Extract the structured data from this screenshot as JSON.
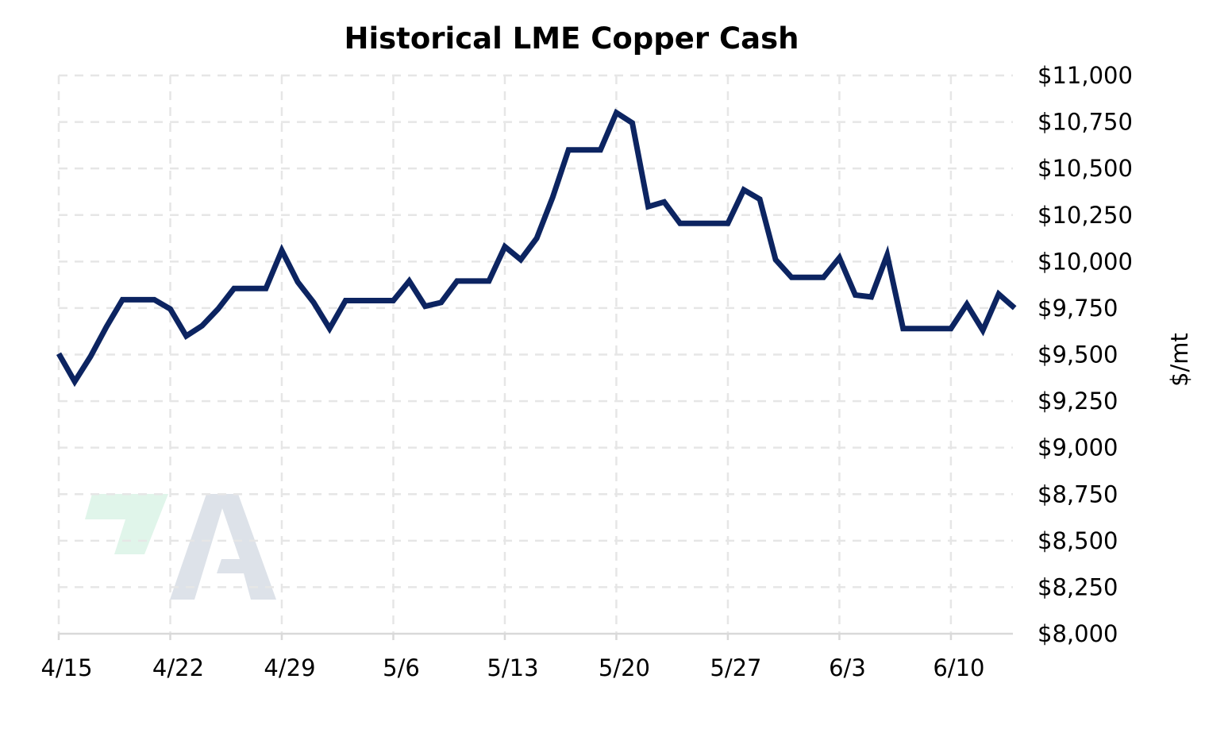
{
  "chart_data": {
    "type": "line",
    "title": "Historical LME Copper Cash",
    "xlabel": "",
    "ylabel": "$/mt",
    "ylim": [
      8000,
      11000
    ],
    "yticks": [
      8000,
      8250,
      8500,
      8750,
      9000,
      9250,
      9500,
      9750,
      10000,
      10250,
      10500,
      10750,
      11000
    ],
    "ytick_labels": [
      "$8,000",
      "$8,250",
      "$8,500",
      "$8,750",
      "$9,000",
      "$9,250",
      "$9,500",
      "$9,750",
      "$10,000",
      "$10,250",
      "$10,500",
      "$10,750",
      "$11,000"
    ],
    "y_axis_side": "right",
    "xticks": [
      "4/15",
      "4/22",
      "4/29",
      "5/6",
      "5/13",
      "5/20",
      "5/27",
      "6/3",
      "6/10"
    ],
    "xlim": [
      "4/15",
      "6/14"
    ],
    "grid": true,
    "legend": "none",
    "colors": {
      "line": "#0c2461",
      "grid": "#e6e6e6",
      "axis": "#d9d9d9"
    },
    "series": [
      {
        "x": [
          "4/15",
          "4/16",
          "4/17",
          "4/18",
          "4/19",
          "4/20",
          "4/21",
          "4/22",
          "4/23",
          "4/24",
          "4/25",
          "4/26",
          "4/27",
          "4/28",
          "4/29",
          "4/30",
          "5/1",
          "5/2",
          "5/3",
          "5/4",
          "5/5",
          "5/6",
          "5/7",
          "5/8",
          "5/9",
          "5/10",
          "5/11",
          "5/12",
          "5/13",
          "5/14",
          "5/15",
          "5/16",
          "5/17",
          "5/18",
          "5/19",
          "5/20",
          "5/21",
          "5/22",
          "5/23",
          "5/24",
          "5/25",
          "5/26",
          "5/27",
          "5/28",
          "5/29",
          "5/30",
          "5/31",
          "6/1",
          "6/2",
          "6/3",
          "6/4",
          "6/5",
          "6/6",
          "6/7",
          "6/8",
          "6/9",
          "6/10",
          "6/11",
          "6/12",
          "6/13",
          "6/14"
        ],
        "values": [
          9505,
          9355,
          9490,
          9650,
          9795,
          9795,
          9795,
          9745,
          9600,
          9655,
          9745,
          9855,
          9855,
          9855,
          10060,
          9890,
          9780,
          9640,
          9790,
          9790,
          9790,
          9790,
          9895,
          9760,
          9780,
          9895,
          9895,
          9895,
          10080,
          10010,
          10125,
          10345,
          10600,
          10600,
          10600,
          10800,
          10745,
          10295,
          10320,
          10205,
          10205,
          10205,
          10205,
          10385,
          10335,
          10010,
          9915,
          9915,
          9915,
          10020,
          9820,
          9810,
          10035,
          9640,
          9640,
          9640,
          9640,
          9770,
          9630,
          9825,
          9750
        ]
      }
    ]
  },
  "logo": {
    "text": "A",
    "colors": {
      "mark": "#e0f5ea",
      "letter": "#dde2e9"
    }
  }
}
